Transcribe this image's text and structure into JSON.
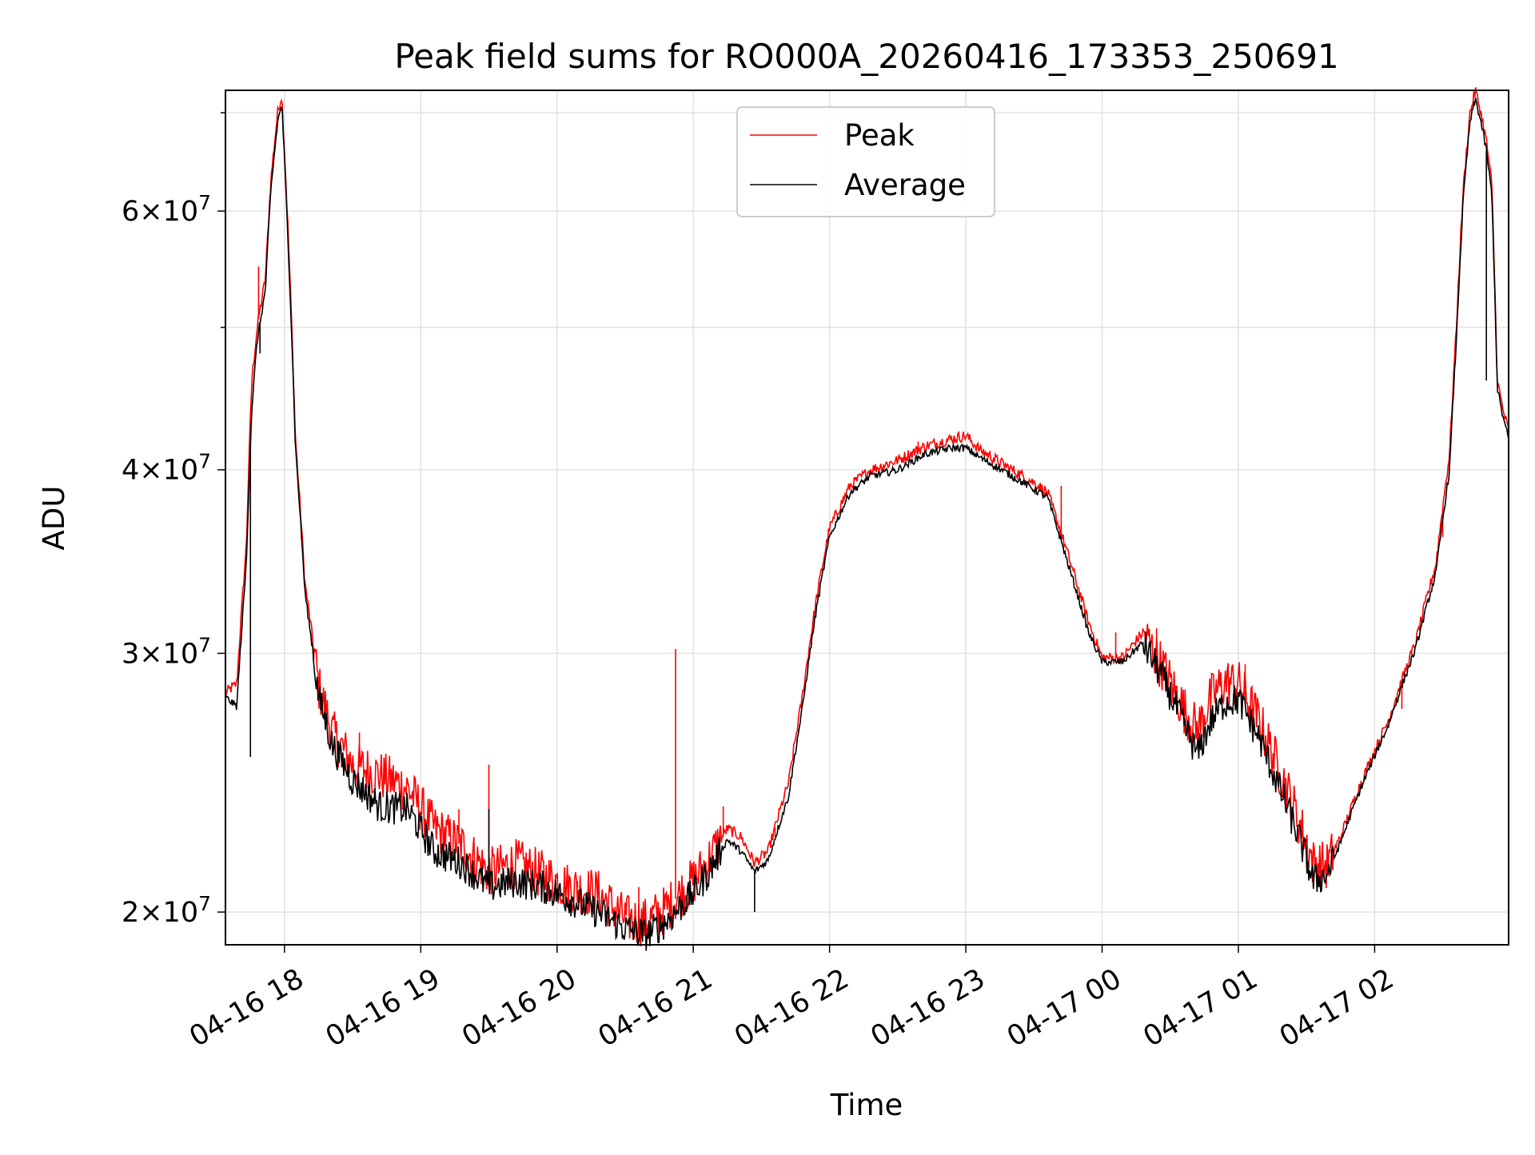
{
  "chart_data": {
    "type": "line",
    "title": "Peak field sums for RO000A_20260416_173353_250691",
    "xlabel": "Time",
    "ylabel": "ADU",
    "y_scale": "log",
    "ylim": [
      19000000,
      72500000
    ],
    "xlim_hours": [
      17.5667,
      26.9833
    ],
    "grid": true,
    "legend_position": "upper-center",
    "x_ticks": [
      {
        "value": 18,
        "label": "04-16 18"
      },
      {
        "value": 19,
        "label": "04-16 19"
      },
      {
        "value": 20,
        "label": "04-16 20"
      },
      {
        "value": 21,
        "label": "04-16 21"
      },
      {
        "value": 22,
        "label": "04-16 22"
      },
      {
        "value": 23,
        "label": "04-16 23"
      },
      {
        "value": 24,
        "label": "04-17 00"
      },
      {
        "value": 25,
        "label": "04-17 01"
      },
      {
        "value": 26,
        "label": "04-17 02"
      }
    ],
    "y_ticks_major": [
      {
        "value": 20000000,
        "mantissa": "2",
        "exp": "7"
      },
      {
        "value": 30000000,
        "mantissa": "3",
        "exp": "7"
      },
      {
        "value": 40000000,
        "mantissa": "4",
        "exp": "7"
      },
      {
        "value": 60000000,
        "mantissa": "6",
        "exp": "7"
      }
    ],
    "y_ticks_minor": [
      50000000,
      70000000
    ],
    "series": [
      {
        "name": "Peak",
        "color": "#ff0000",
        "points": [
          [
            17.567,
            28.2
          ],
          [
            17.65,
            28.6
          ],
          [
            17.72,
            35.5
          ],
          [
            17.76,
            46
          ],
          [
            17.8,
            50
          ],
          [
            17.86,
            54
          ],
          [
            17.9,
            63
          ],
          [
            17.95,
            70
          ],
          [
            17.98,
            72
          ],
          [
            18.02,
            60
          ],
          [
            18.08,
            42
          ],
          [
            18.15,
            33.5
          ],
          [
            18.25,
            28.5
          ],
          [
            18.35,
            26.5
          ],
          [
            18.5,
            25.2
          ],
          [
            18.7,
            24.8
          ],
          [
            18.9,
            24.3
          ],
          [
            19.1,
            22.8
          ],
          [
            19.3,
            22.2
          ],
          [
            19.5,
            21.3
          ],
          [
            19.7,
            21.6
          ],
          [
            19.9,
            21.2
          ],
          [
            20.1,
            20.8
          ],
          [
            20.3,
            20.6
          ],
          [
            20.5,
            19.8
          ],
          [
            20.65,
            19.7
          ],
          [
            20.8,
            20.1
          ],
          [
            21.0,
            21.0
          ],
          [
            21.1,
            21.6
          ],
          [
            21.25,
            22.8
          ],
          [
            21.35,
            22.5
          ],
          [
            21.45,
            21.6
          ],
          [
            21.55,
            22.0
          ],
          [
            21.7,
            24.5
          ],
          [
            21.8,
            28.0
          ],
          [
            21.9,
            32.5
          ],
          [
            22.0,
            36.5
          ],
          [
            22.15,
            39.0
          ],
          [
            22.3,
            40.0
          ],
          [
            22.5,
            40.6
          ],
          [
            22.7,
            41.5
          ],
          [
            22.9,
            42.0
          ],
          [
            23.0,
            42.2
          ],
          [
            23.1,
            41.3
          ],
          [
            23.3,
            40.2
          ],
          [
            23.5,
            39.2
          ],
          [
            23.6,
            38.6
          ],
          [
            23.75,
            35.0
          ],
          [
            23.9,
            31.5
          ],
          [
            24.0,
            29.8
          ],
          [
            24.15,
            29.8
          ],
          [
            24.3,
            31.0
          ],
          [
            24.45,
            29.3
          ],
          [
            24.6,
            27.5
          ],
          [
            24.7,
            26.6
          ],
          [
            24.8,
            28.0
          ],
          [
            24.9,
            28.7
          ],
          [
            25.0,
            28.6
          ],
          [
            25.15,
            27.0
          ],
          [
            25.3,
            25.0
          ],
          [
            25.45,
            23.0
          ],
          [
            25.55,
            21.6
          ],
          [
            25.65,
            21.5
          ],
          [
            25.75,
            22.5
          ],
          [
            25.9,
            24.5
          ],
          [
            26.1,
            27.0
          ],
          [
            26.3,
            30.5
          ],
          [
            26.45,
            34.5
          ],
          [
            26.55,
            41.0
          ],
          [
            26.6,
            50.0
          ],
          [
            26.65,
            62.0
          ],
          [
            26.7,
            70.0
          ],
          [
            26.74,
            72.5
          ],
          [
            26.78,
            70.0
          ],
          [
            26.82,
            67.0
          ],
          [
            26.86,
            62.5
          ],
          [
            26.9,
            46.0
          ],
          [
            26.94,
            44.0
          ],
          [
            26.983,
            42.5
          ]
        ],
        "spikes": [
          [
            17.81,
            55
          ],
          [
            18.55,
            26.5
          ],
          [
            19.28,
            23.5
          ],
          [
            19.5,
            25.2
          ],
          [
            20.15,
            21.0
          ],
          [
            20.6,
            20.8
          ],
          [
            20.87,
            30.2
          ],
          [
            21.22,
            23.6
          ],
          [
            21.6,
            22.5
          ],
          [
            22.1,
            38.0
          ],
          [
            22.65,
            41.8
          ],
          [
            23.7,
            39.0
          ],
          [
            24.1,
            31.0
          ],
          [
            24.4,
            31.2
          ],
          [
            25.05,
            29.5
          ],
          [
            26.2,
            27.5
          ],
          [
            26.5,
            36.0
          ]
        ]
      },
      {
        "name": "Average",
        "color": "#000000",
        "points": [
          [
            17.567,
            28.0
          ],
          [
            17.65,
            27.6
          ],
          [
            17.72,
            34.5
          ],
          [
            17.76,
            44
          ],
          [
            17.8,
            49
          ],
          [
            17.86,
            53
          ],
          [
            17.9,
            62
          ],
          [
            17.95,
            69
          ],
          [
            17.98,
            71
          ],
          [
            18.02,
            59
          ],
          [
            18.08,
            41.5
          ],
          [
            18.15,
            33
          ],
          [
            18.25,
            28
          ],
          [
            18.35,
            26
          ],
          [
            18.5,
            24.6
          ],
          [
            18.7,
            23.6
          ],
          [
            18.9,
            23.5
          ],
          [
            19.1,
            22.0
          ],
          [
            19.3,
            21.6
          ],
          [
            19.5,
            20.8
          ],
          [
            19.7,
            21.0
          ],
          [
            19.9,
            20.8
          ],
          [
            20.1,
            20.4
          ],
          [
            20.3,
            20.0
          ],
          [
            20.5,
            19.5
          ],
          [
            20.65,
            19.3
          ],
          [
            20.8,
            19.7
          ],
          [
            21.0,
            20.6
          ],
          [
            21.1,
            21.2
          ],
          [
            21.25,
            22.4
          ],
          [
            21.35,
            22.0
          ],
          [
            21.45,
            21.3
          ],
          [
            21.55,
            21.7
          ],
          [
            21.7,
            24.0
          ],
          [
            21.8,
            27.5
          ],
          [
            21.9,
            32.0
          ],
          [
            22.0,
            36.0
          ],
          [
            22.15,
            38.6
          ],
          [
            22.3,
            39.6
          ],
          [
            22.5,
            40.0
          ],
          [
            22.7,
            41.0
          ],
          [
            22.9,
            41.4
          ],
          [
            23.0,
            41.4
          ],
          [
            23.1,
            40.8
          ],
          [
            23.3,
            39.8
          ],
          [
            23.5,
            38.8
          ],
          [
            23.6,
            38.3
          ],
          [
            23.75,
            34.5
          ],
          [
            23.9,
            31.0
          ],
          [
            24.0,
            29.6
          ],
          [
            24.15,
            29.6
          ],
          [
            24.3,
            30.5
          ],
          [
            24.45,
            28.8
          ],
          [
            24.6,
            26.8
          ],
          [
            24.7,
            25.6
          ],
          [
            24.8,
            27.0
          ],
          [
            24.9,
            27.8
          ],
          [
            25.0,
            27.9
          ],
          [
            25.15,
            26.3
          ],
          [
            25.3,
            24.3
          ],
          [
            25.45,
            22.4
          ],
          [
            25.55,
            21.0
          ],
          [
            25.65,
            21.2
          ],
          [
            25.75,
            22.3
          ],
          [
            25.9,
            24.3
          ],
          [
            26.1,
            26.8
          ],
          [
            26.3,
            30.2
          ],
          [
            26.45,
            34.0
          ],
          [
            26.55,
            40.0
          ],
          [
            26.6,
            49.0
          ],
          [
            26.65,
            61.0
          ],
          [
            26.7,
            69.0
          ],
          [
            26.74,
            71.5
          ],
          [
            26.78,
            69.0
          ],
          [
            26.82,
            66.0
          ],
          [
            26.86,
            61.5
          ],
          [
            26.9,
            45.5
          ],
          [
            26.94,
            43.5
          ],
          [
            26.983,
            42.0
          ]
        ],
        "spikes": [
          [
            17.75,
            25.5
          ],
          [
            17.82,
            48
          ],
          [
            19.5,
            23.5
          ],
          [
            21.45,
            20.0
          ],
          [
            26.82,
            46.0
          ]
        ]
      }
    ]
  },
  "legend": {
    "peak_label": "Peak",
    "average_label": "Average"
  }
}
